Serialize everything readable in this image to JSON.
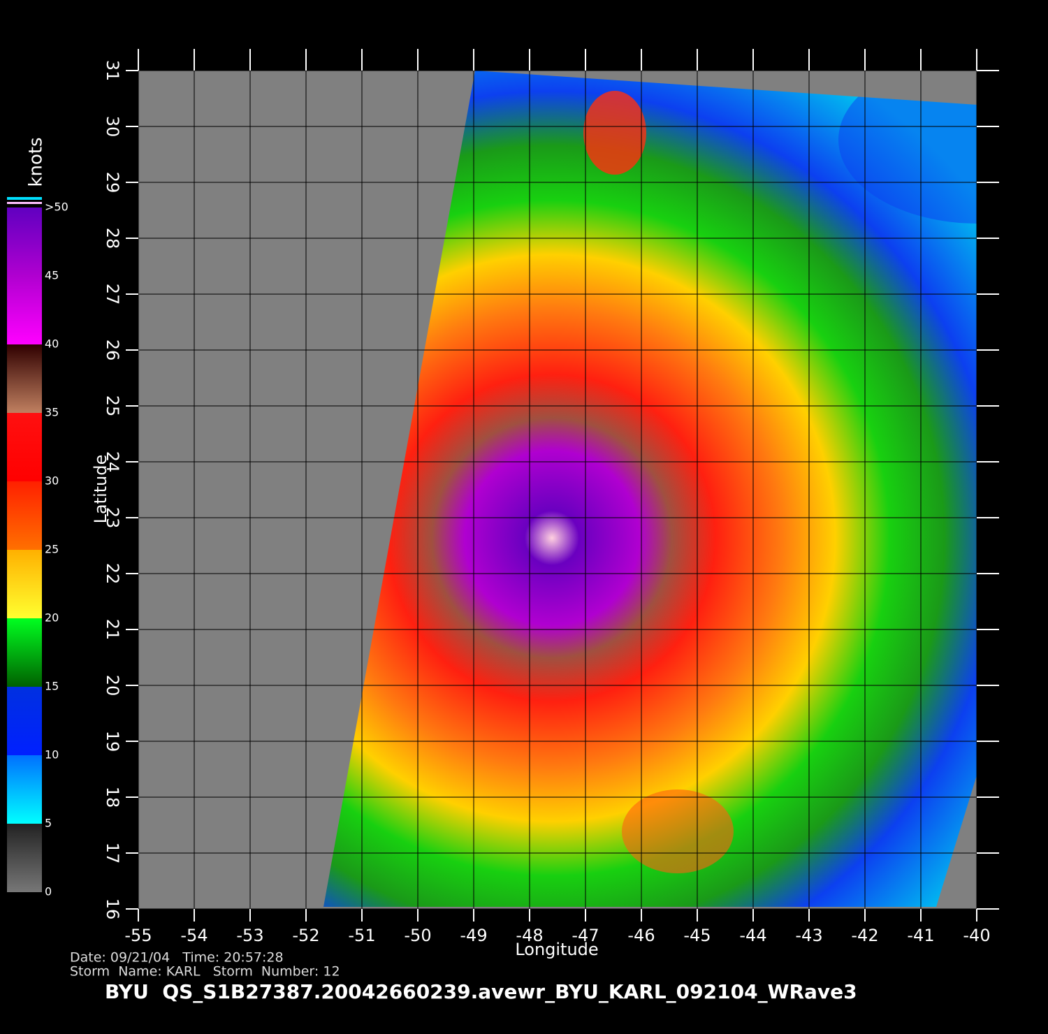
{
  "map": {
    "x_label": "Longitude",
    "y_label": "Latitude",
    "xlim": [
      -55,
      -40
    ],
    "ylim": [
      16,
      31
    ],
    "xticks": [
      -55,
      -54,
      -53,
      -52,
      -51,
      -50,
      -49,
      -48,
      -47,
      -46,
      -45,
      -44,
      -43,
      -42,
      -41,
      -40
    ],
    "yticks": [
      16,
      17,
      18,
      19,
      20,
      21,
      22,
      23,
      24,
      25,
      26,
      27,
      28,
      29,
      30,
      31
    ]
  },
  "colorbar": {
    "unit": "knots",
    "ticks": [
      0,
      5,
      10,
      15,
      20,
      25,
      30,
      35,
      40,
      45,
      {
        "value": 50,
        "label": ">50"
      }
    ]
  },
  "footer": {
    "date_line": "Date: 09/21/04   Time: 20:57:28",
    "storm_line": "Storm  Name: KARL   Storm  Number: 12",
    "product": "BYU  QS_S1B27387.20042660239.avewr_BYU_KARL_092104_WRave3"
  }
}
